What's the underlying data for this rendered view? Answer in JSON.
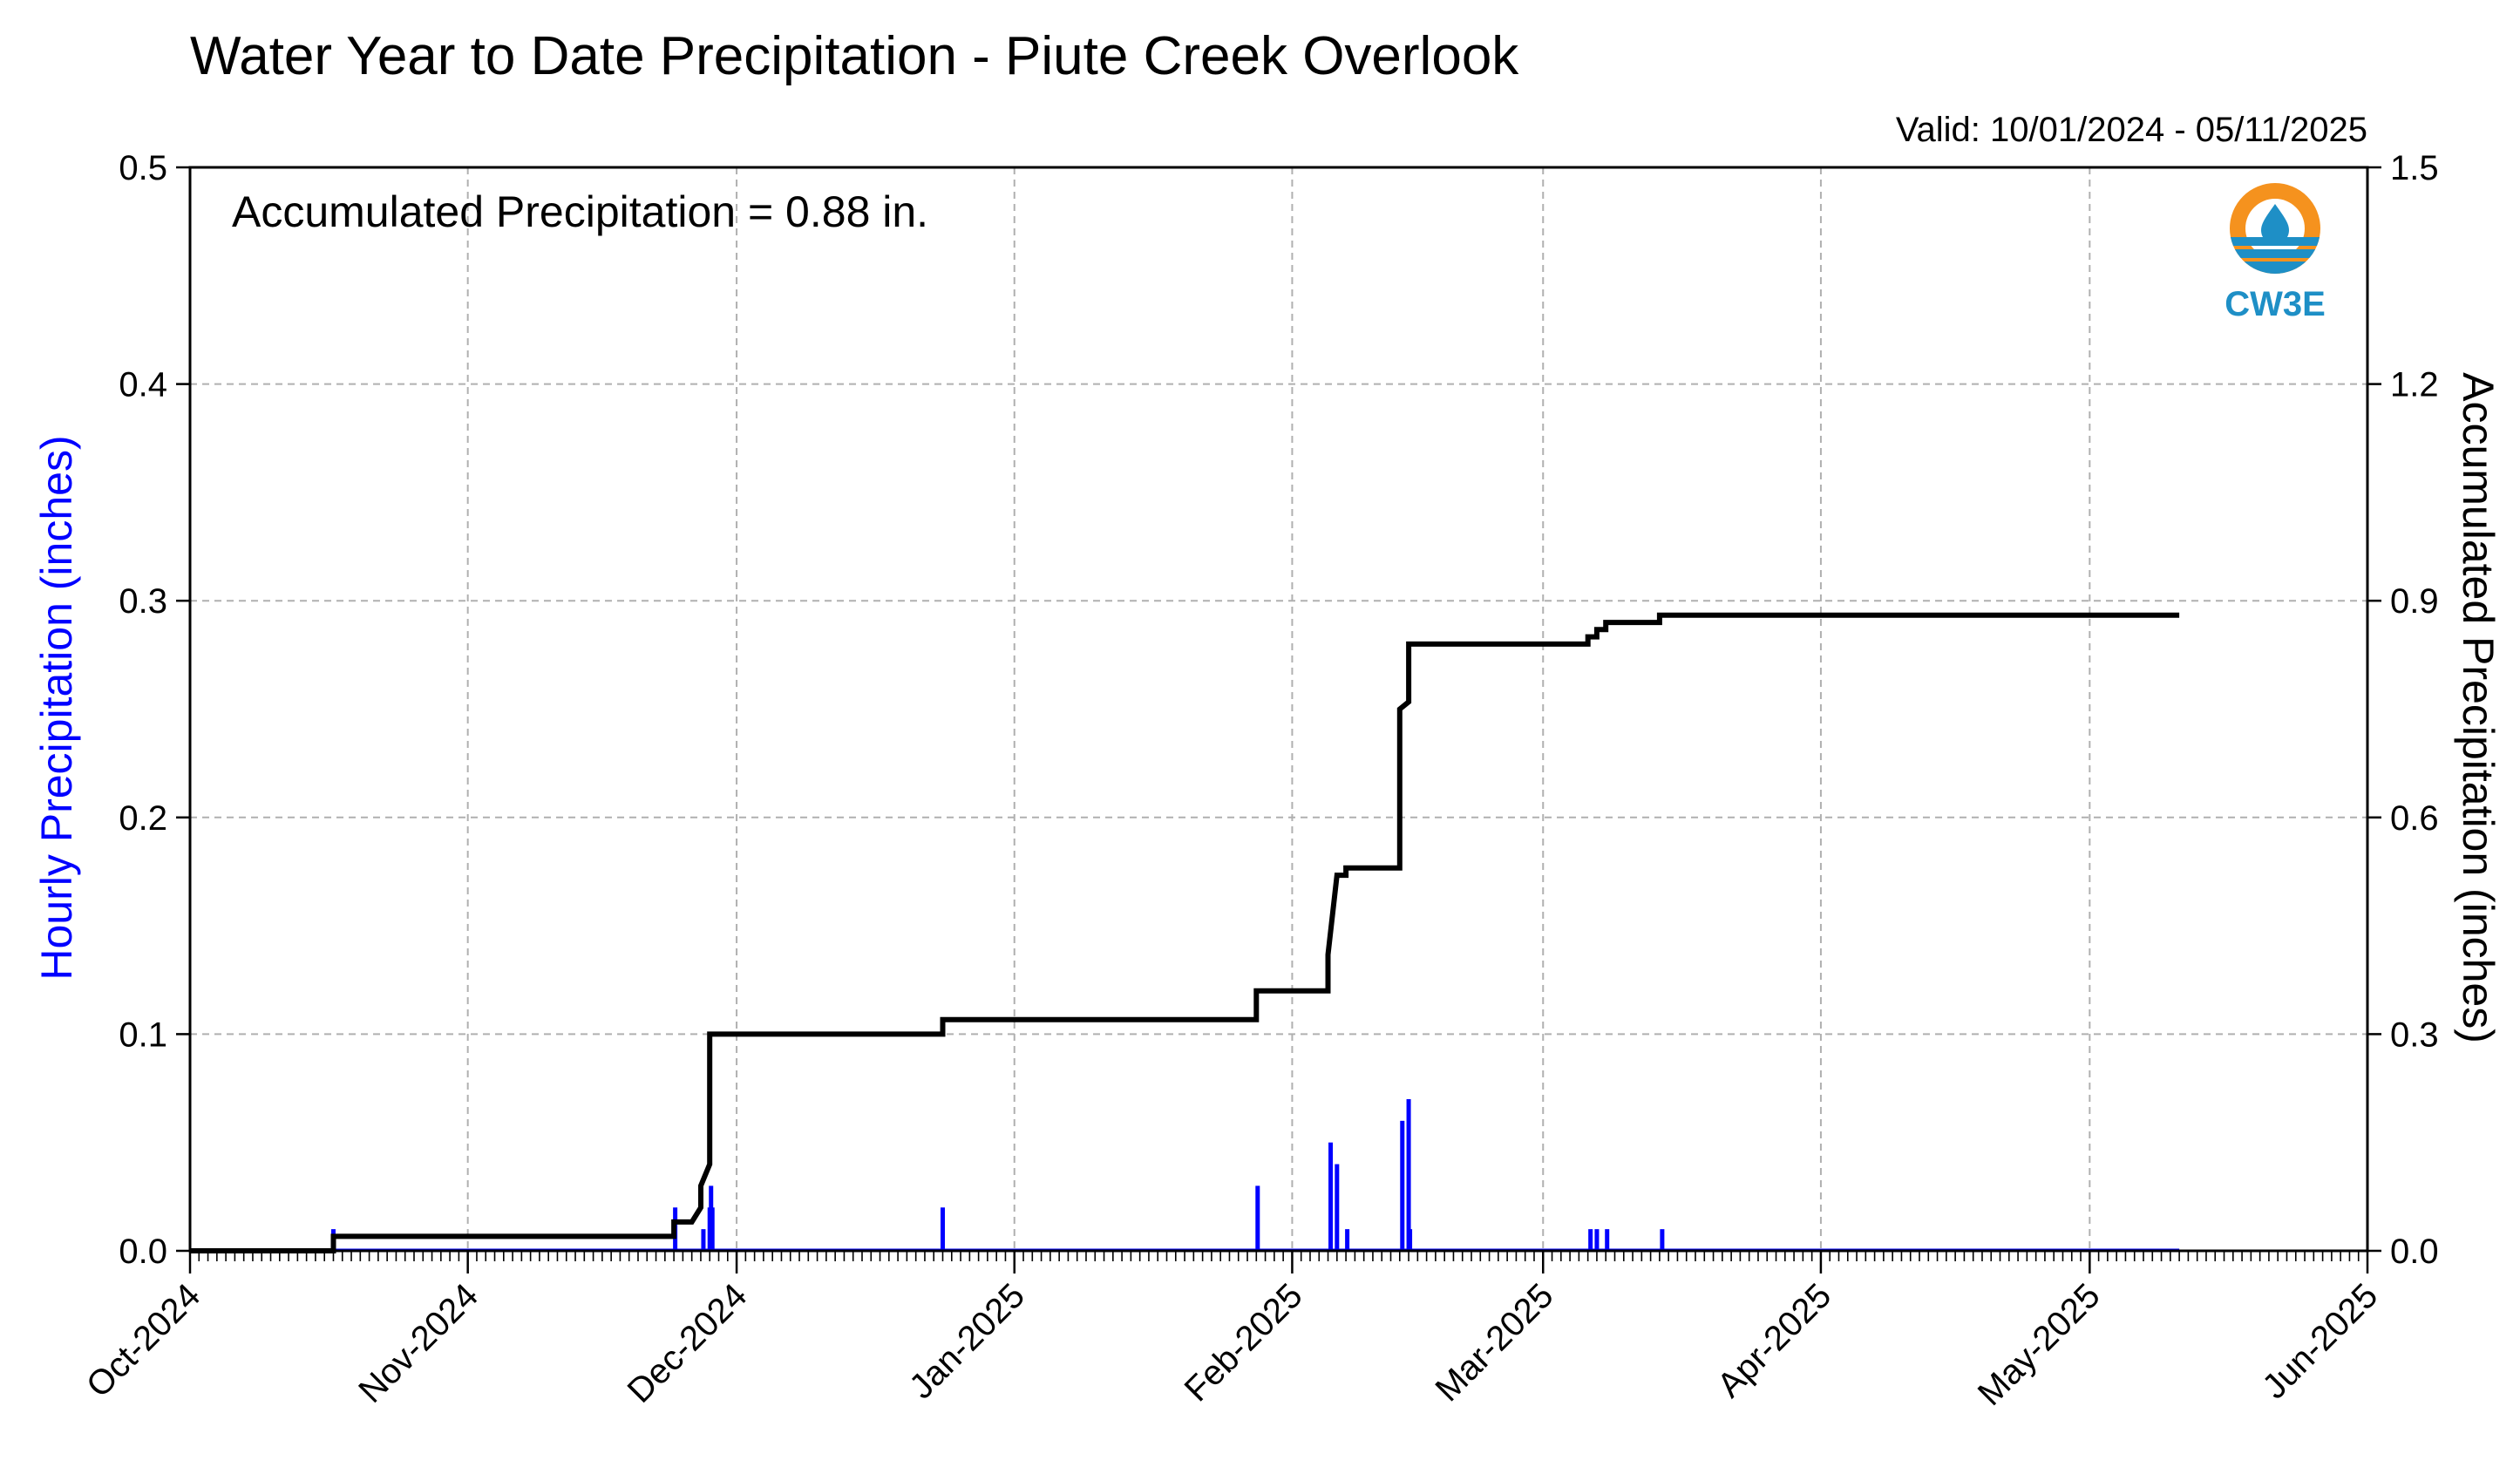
{
  "chart_data": {
    "type": "bar+line",
    "title": "Water Year to Date Precipitation - Piute Creek Overlook",
    "valid_text": "Valid: 10/01/2024 - 05/11/2025",
    "annotation": "Accumulated Precipitation = 0.88 in.",
    "logo_text": "CW3E",
    "ylabel_left": "Hourly Precipitation (inches)",
    "ylabel_right": "Accumulated Precipitation (inches)",
    "ylim_left": [
      0,
      0.5
    ],
    "ylim_right": [
      0,
      1.5
    ],
    "yticks_left": [
      "0.0",
      "0.1",
      "0.2",
      "0.3",
      "0.4",
      "0.5"
    ],
    "yticks_right": [
      "0.0",
      "0.3",
      "0.6",
      "0.9",
      "1.2",
      "1.5"
    ],
    "xlim": [
      "2024-10-01",
      "2025-06-01"
    ],
    "xtick_labels": [
      "Oct-2024",
      "Nov-2024",
      "Dec-2024",
      "Jan-2025",
      "Feb-2025",
      "Mar-2025",
      "Apr-2025",
      "May-2025",
      "Jun-2025"
    ],
    "xtick_dates": [
      "2024-10-01",
      "2024-11-01",
      "2024-12-01",
      "2025-01-01",
      "2025-02-01",
      "2025-03-01",
      "2025-04-01",
      "2025-05-01",
      "2025-06-01"
    ],
    "grid": true,
    "colors": {
      "hourly": "#0000ff",
      "accumulated": "#000000",
      "grid": "#b0b0b0",
      "logo_orange": "#f5921e",
      "logo_blue": "#1e8fc6"
    },
    "series": [
      {
        "name": "Hourly Precipitation",
        "axis": "left",
        "style": "bar",
        "points": [
          [
            "2024-10-17",
            0.01
          ],
          [
            "2024-11-24",
            0.02
          ],
          [
            "2024-11-27",
            0.01
          ],
          [
            "2024-11-28",
            0.02
          ],
          [
            "2024-11-28",
            0.03
          ],
          [
            "2024-11-28",
            0.02
          ],
          [
            "2024-12-24",
            0.02
          ],
          [
            "2025-01-28",
            0.03
          ],
          [
            "2025-02-05",
            0.05
          ],
          [
            "2025-02-06",
            0.04
          ],
          [
            "2025-02-07",
            0.01
          ],
          [
            "2025-02-13",
            0.06
          ],
          [
            "2025-02-14",
            0.07
          ],
          [
            "2025-02-14",
            0.01
          ],
          [
            "2025-03-06",
            0.01
          ],
          [
            "2025-03-07",
            0.01
          ],
          [
            "2025-03-08",
            0.01
          ],
          [
            "2025-03-14",
            0.01
          ]
        ]
      },
      {
        "name": "Accumulated Precipitation",
        "axis": "right",
        "style": "step",
        "points": [
          [
            "2024-10-01",
            0.0
          ],
          [
            "2024-10-17",
            0.0
          ],
          [
            "2024-10-17",
            0.02
          ],
          [
            "2024-11-24",
            0.02
          ],
          [
            "2024-11-24",
            0.04
          ],
          [
            "2024-11-26",
            0.04
          ],
          [
            "2024-11-27",
            0.06
          ],
          [
            "2024-11-27",
            0.09
          ],
          [
            "2024-11-28",
            0.12
          ],
          [
            "2024-11-28",
            0.27
          ],
          [
            "2024-11-28",
            0.3
          ],
          [
            "2024-12-24",
            0.3
          ],
          [
            "2024-12-24",
            0.32
          ],
          [
            "2025-01-28",
            0.32
          ],
          [
            "2025-01-28",
            0.36
          ],
          [
            "2025-02-05",
            0.36
          ],
          [
            "2025-02-05",
            0.41
          ],
          [
            "2025-02-06",
            0.52
          ],
          [
            "2025-02-07",
            0.52
          ],
          [
            "2025-02-07",
            0.53
          ],
          [
            "2025-02-13",
            0.53
          ],
          [
            "2025-02-13",
            0.62
          ],
          [
            "2025-02-13",
            0.75
          ],
          [
            "2025-02-14",
            0.76
          ],
          [
            "2025-02-14",
            0.84
          ],
          [
            "2025-03-06",
            0.84
          ],
          [
            "2025-03-06",
            0.85
          ],
          [
            "2025-03-07",
            0.85
          ],
          [
            "2025-03-07",
            0.86
          ],
          [
            "2025-03-08",
            0.86
          ],
          [
            "2025-03-08",
            0.87
          ],
          [
            "2025-03-14",
            0.87
          ],
          [
            "2025-03-14",
            0.88
          ],
          [
            "2025-05-11",
            0.88
          ]
        ]
      }
    ]
  }
}
